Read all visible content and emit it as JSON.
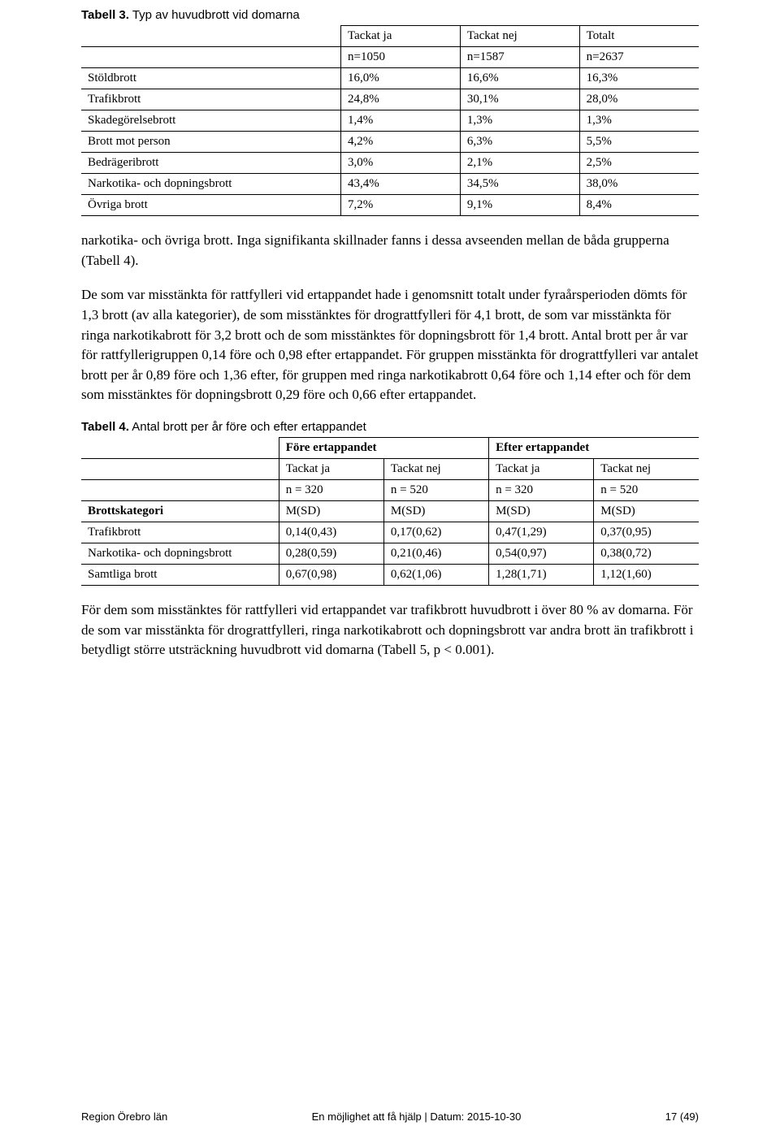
{
  "table3": {
    "caption_bold": "Tabell 3.",
    "caption_rest": " Typ av huvudbrott vid domarna",
    "headers": [
      "Tackat ja",
      "Tackat nej",
      "Totalt"
    ],
    "subheaders": [
      "n=1050",
      "n=1587",
      "n=2637"
    ],
    "rows": [
      {
        "label": "Stöldbrott",
        "vals": [
          "16,0%",
          "16,6%",
          "16,3%"
        ]
      },
      {
        "label": "Trafikbrott",
        "vals": [
          "24,8%",
          "30,1%",
          "28,0%"
        ]
      },
      {
        "label": "Skadegörelsebrott",
        "vals": [
          "1,4%",
          "1,3%",
          "1,3%"
        ]
      },
      {
        "label": "Brott mot person",
        "vals": [
          "4,2%",
          "6,3%",
          "5,5%"
        ]
      },
      {
        "label": "Bedrägeribrott",
        "vals": [
          "3,0%",
          "2,1%",
          "2,5%"
        ]
      },
      {
        "label": "Narkotika- och dopningsbrott",
        "vals": [
          "43,4%",
          "34,5%",
          "38,0%"
        ]
      },
      {
        "label": "Övriga brott",
        "vals": [
          "7,2%",
          "9,1%",
          "8,4%"
        ]
      }
    ]
  },
  "para1": "narkotika- och övriga brott. Inga signifikanta skillnader fanns i dessa avseenden mellan de båda grupperna (Tabell 4).",
  "para2": "De som var misstänkta för rattfylleri vid ertappandet hade i genomsnitt totalt under fyraårsperioden dömts för 1,3 brott (av alla kategorier), de som misstänktes för drograttfylleri för 4,1 brott, de som var misstänkta för ringa narkotikabrott för 3,2 brott och de som misstänktes för dopningsbrott för 1,4 brott. Antal brott per år var för rattfyllerigruppen 0,14 före och 0,98 efter ertappandet. För gruppen misstänkta för drograttfylleri var antalet brott per år 0,89 före och 1,36 efter, för gruppen med ringa narkotikabrott 0,64 före och 1,14 efter och för dem som misstänktes för dopningsbrott 0,29 före och 0,66 efter ertappandet.",
  "table4": {
    "caption_bold": "Tabell 4.",
    "caption_rest": " Antal brott per år före och efter ertappandet",
    "group_headers": [
      "Före ertappandet",
      "Efter ertappandet"
    ],
    "sub1": [
      "Tackat ja",
      "Tackat nej",
      "Tackat ja",
      "Tackat nej"
    ],
    "sub2": [
      "n = 320",
      "n = 520",
      "n = 320",
      "n = 520"
    ],
    "cat_header": "Brottskategori",
    "msd": [
      "M(SD)",
      "M(SD)",
      "M(SD)",
      "M(SD)"
    ],
    "rows": [
      {
        "label": "Trafikbrott",
        "vals": [
          "0,14(0,43)",
          "0,17(0,62)",
          "0,47(1,29)",
          "0,37(0,95)"
        ]
      },
      {
        "label": "Narkotika- och dopningsbrott",
        "vals": [
          "0,28(0,59)",
          "0,21(0,46)",
          "0,54(0,97)",
          "0,38(0,72)"
        ]
      },
      {
        "label": "Samtliga brott",
        "vals": [
          "0,67(0,98)",
          "0,62(1,06)",
          "1,28(1,71)",
          "1,12(1,60)"
        ]
      }
    ]
  },
  "para3": "För dem som misstänktes för rattfylleri vid ertappandet var trafikbrott huvudbrott i över 80 % av domarna. För de som var misstänkta för drograttfylleri, ringa narkotikabrott och dopningsbrott var andra brott än trafikbrott i betydligt större utsträckning huvudbrott vid domarna (Tabell 5, p < 0.001).",
  "footer": {
    "left": "Region Örebro län",
    "center": "En möjlighet att få hjälp | Datum: 2015-10-30",
    "right": "17 (49)"
  }
}
